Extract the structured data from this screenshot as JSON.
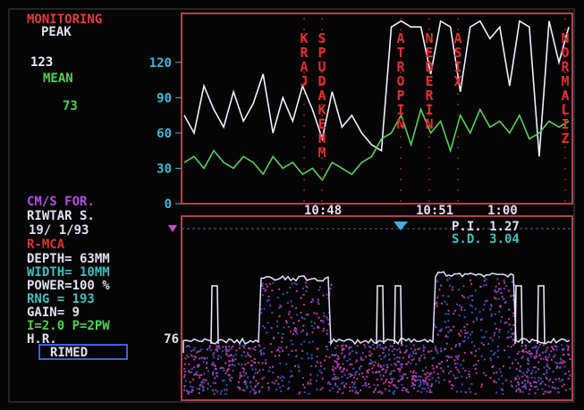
{
  "header": {
    "title": "MONITORING",
    "peak_label": "PEAK",
    "peak_value": "123",
    "mean_label": "MEAN",
    "mean_value": "73"
  },
  "trend": {
    "type": "line",
    "ylim": [
      0,
      160
    ],
    "yticks": [
      0,
      30,
      60,
      90,
      120
    ],
    "series": [
      {
        "color": "#f0f0ff",
        "values": [
          75,
          60,
          100,
          80,
          65,
          95,
          70,
          85,
          110,
          60,
          90,
          70,
          100,
          80,
          55,
          95,
          65,
          75,
          60,
          50,
          45,
          150,
          155,
          150,
          150,
          110,
          155,
          150,
          95,
          150,
          155,
          140,
          150,
          100,
          155,
          150,
          40,
          155,
          120,
          150
        ]
      },
      {
        "color": "#5ad05a",
        "values": [
          35,
          40,
          30,
          45,
          35,
          30,
          40,
          35,
          25,
          40,
          30,
          35,
          25,
          30,
          20,
          35,
          30,
          25,
          35,
          40,
          55,
          60,
          75,
          50,
          80,
          60,
          70,
          45,
          75,
          60,
          80,
          65,
          70,
          60,
          75,
          55,
          60,
          70,
          65,
          70
        ]
      }
    ],
    "annotations": [
      "KRAJ",
      "SPUDAKEHM",
      "ATROPIN",
      "NEDERIN",
      "ASIX",
      "NORMALIZ"
    ],
    "times": [
      "10:48",
      "10:51",
      "1:00"
    ]
  },
  "patient": {
    "units": "CM/S FOR.",
    "name": "RIWTAR S.",
    "date": "19/ 1/93",
    "vessel": "R-MCA",
    "depth": "DEPTH= 63MM",
    "width": "WIDTH= 10MM",
    "power": "POWER=100 %",
    "rng": "RNG =  193",
    "gain": "GAIN=     9",
    "params": "I=2.0  P=2PW",
    "hr_label": "H.R.",
    "hr_value": "76",
    "brand": "RIMED"
  },
  "spectrum": {
    "pi": "P.I.  1.27",
    "sd": "S.D.  3.04"
  }
}
